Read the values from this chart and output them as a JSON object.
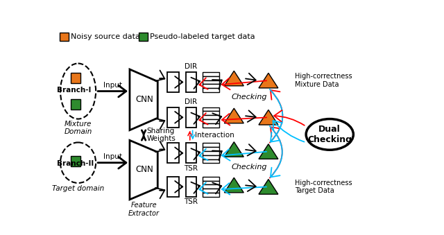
{
  "bg_color": "#ffffff",
  "orange_color": "#E8761A",
  "green_color": "#2E8B2E",
  "red": "#FF0000",
  "blue": "#00BFFF",
  "legend_noisy": "Noisy source data",
  "legend_pseudo": "Pseudo-labeled target data",
  "branch_I": "Branch-I",
  "branch_II": "Branch-II",
  "mixture_domain": "Mixture\nDomain",
  "target_domain": "Target domain",
  "cnn": "CNN",
  "feature_extractor": "Feature\nExtractor",
  "sharing_weights": "Sharing\nWeights",
  "dir": "DIR",
  "tsr": "TSR",
  "checking": "Checking",
  "interaction": "Interaction",
  "dual_checking": "Dual\nChecking",
  "hc_mixture": "High-correctness\nMixture Data",
  "hc_target": "High-correctness\nTarget Data",
  "input": "Input"
}
